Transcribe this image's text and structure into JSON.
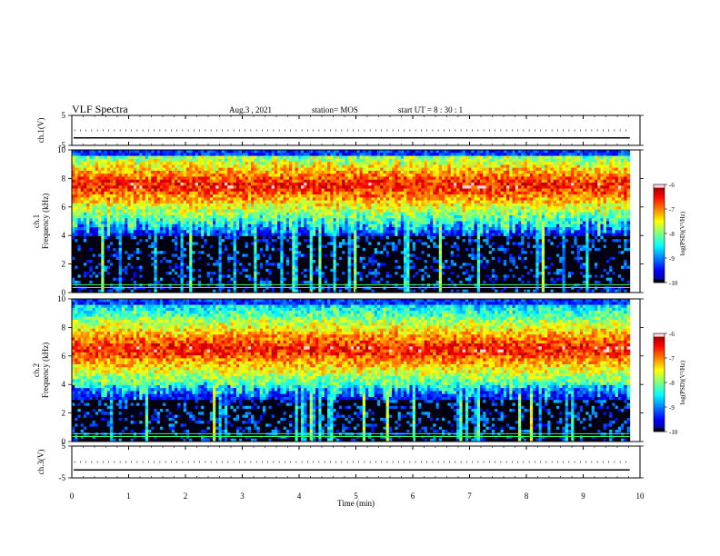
{
  "header": {
    "title": "VLF Spectra",
    "date": "Aug.3  , 2021",
    "station": "station= MOS",
    "start_ut": "start  UT  =   8  : 30 : 1"
  },
  "chart_data": {
    "type": "heatmap",
    "x_axis": {
      "label": "Time  (min)",
      "range": [
        0,
        10
      ],
      "ticks": [
        0,
        1,
        2,
        3,
        4,
        5,
        6,
        7,
        8,
        9,
        10
      ],
      "data_end": 9.82
    },
    "panels": [
      {
        "id": "ch1-waveform",
        "kind": "line",
        "ylabel": "ch.1(V)",
        "yrange": [
          -5,
          5
        ],
        "yticks": [
          5,
          -5
        ],
        "level": -2.5
      },
      {
        "id": "ch1-spectrogram",
        "kind": "heatmap",
        "ylabel": "ch.1\nFrequency  (kHz)",
        "yrange": [
          0,
          10
        ],
        "yticks": [
          0,
          2,
          4,
          6,
          8,
          10
        ],
        "band_khz": [
          4.5,
          9.5
        ],
        "band_peak_khz": 7.5,
        "background_khz": [
          0,
          4
        ]
      },
      {
        "id": "ch2-spectrogram",
        "kind": "heatmap",
        "ylabel": "ch.2\nFrequency  (kHz)",
        "yrange": [
          0,
          10
        ],
        "yticks": [
          0,
          2,
          4,
          6,
          8,
          10
        ],
        "band_khz": [
          3.5,
          9.5
        ],
        "band_peak_khz": 6.5,
        "background_khz": [
          0,
          3
        ]
      },
      {
        "id": "ch3-waveform",
        "kind": "line",
        "ylabel": "ch.3(V)",
        "yrange": [
          -5,
          5
        ],
        "yticks": [
          5,
          -5
        ],
        "level": -2.5
      }
    ],
    "colorbar": {
      "label": "log(PSD)(V²/Hz)",
      "range": [
        -10,
        -6
      ],
      "ticks": [
        -6,
        -7,
        -8,
        -9,
        -10
      ]
    },
    "grid": false
  },
  "colors": {
    "axis": "#000000",
    "background": "#ffffff"
  }
}
